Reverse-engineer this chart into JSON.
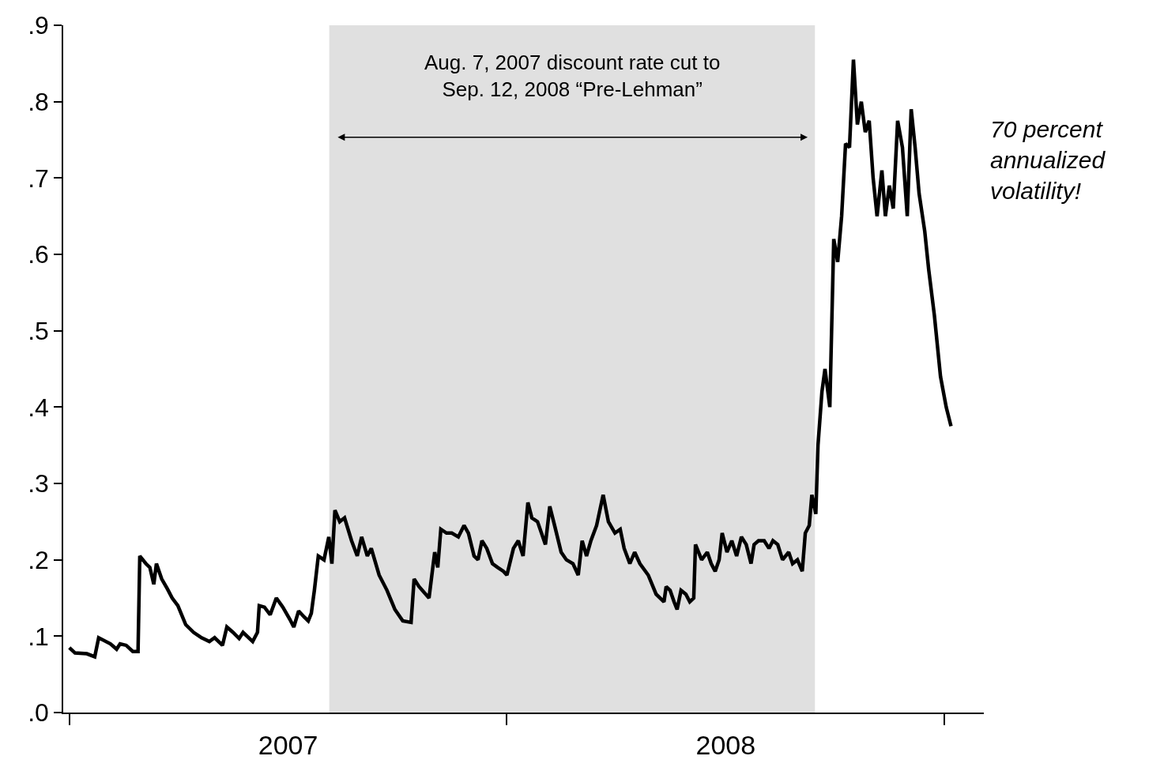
{
  "chart_data": {
    "type": "line",
    "x": [
      2007.0,
      2007.013,
      2007.04,
      2007.058,
      2007.067,
      2007.094,
      2007.108,
      2007.116,
      2007.13,
      2007.145,
      2007.157,
      2007.161,
      2007.175,
      2007.184,
      2007.193,
      2007.199,
      2007.211,
      2007.224,
      2007.235,
      2007.248,
      2007.266,
      2007.284,
      2007.302,
      2007.32,
      2007.332,
      2007.35,
      2007.36,
      2007.374,
      2007.388,
      2007.397,
      2007.419,
      2007.43,
      2007.434,
      2007.446,
      2007.459,
      2007.473,
      2007.488,
      2007.504,
      2007.513,
      2007.524,
      2007.537,
      2007.546,
      2007.553,
      2007.56,
      2007.569,
      2007.582,
      2007.593,
      2007.6,
      2007.607,
      2007.618,
      2007.629,
      2007.645,
      2007.658,
      2007.668,
      2007.681,
      2007.69,
      2007.708,
      2007.726,
      2007.744,
      2007.762,
      2007.781,
      2007.788,
      2007.799,
      2007.822,
      2007.835,
      2007.842,
      2007.849,
      2007.862,
      2007.874,
      2007.889,
      2007.902,
      2007.912,
      2007.925,
      2007.934,
      2007.943,
      2007.954,
      2007.967,
      2007.979,
      2007.992,
      2008.0,
      2008.015,
      2008.026,
      2008.037,
      2008.048,
      2008.057,
      2008.07,
      2008.088,
      2008.098,
      2008.109,
      2008.124,
      2008.136,
      2008.151,
      2008.163,
      2008.172,
      2008.182,
      2008.192,
      2008.205,
      2008.22,
      2008.232,
      2008.247,
      2008.259,
      2008.268,
      2008.281,
      2008.292,
      2008.304,
      2008.323,
      2008.341,
      2008.359,
      2008.364,
      2008.373,
      2008.382,
      2008.389,
      2008.398,
      2008.409,
      2008.418,
      2008.427,
      2008.431,
      2008.445,
      2008.458,
      2008.467,
      2008.476,
      2008.485,
      2008.492,
      2008.503,
      2008.514,
      2008.525,
      2008.536,
      2008.547,
      2008.558,
      2008.565,
      2008.575,
      2008.588,
      2008.599,
      2008.608,
      2008.619,
      2008.63,
      2008.644,
      2008.653,
      2008.664,
      2008.675,
      2008.682,
      2008.691,
      2008.697,
      2008.706,
      2008.711,
      2008.72,
      2008.727,
      2008.738,
      2008.747,
      2008.756,
      2008.765,
      2008.774,
      2008.783,
      2008.792,
      2008.801,
      2008.81,
      2008.819,
      2008.828,
      2008.837,
      2008.846,
      2008.857,
      2008.865,
      2008.874,
      2008.883,
      2008.893,
      2008.904,
      2008.915,
      2008.924,
      2008.933,
      2008.942,
      2008.955,
      2008.964,
      2008.977,
      2008.991,
      2009.004,
      2009.015
    ],
    "series": [
      {
        "color": "#000000",
        "values": [
          0.085,
          0.078,
          0.077,
          0.073,
          0.098,
          0.09,
          0.083,
          0.09,
          0.088,
          0.08,
          0.08,
          0.205,
          0.195,
          0.19,
          0.168,
          0.195,
          0.175,
          0.162,
          0.15,
          0.14,
          0.115,
          0.105,
          0.098,
          0.093,
          0.098,
          0.088,
          0.112,
          0.105,
          0.097,
          0.105,
          0.093,
          0.105,
          0.14,
          0.138,
          0.128,
          0.15,
          0.138,
          0.122,
          0.112,
          0.133,
          0.125,
          0.12,
          0.13,
          0.16,
          0.205,
          0.2,
          0.23,
          0.195,
          0.265,
          0.25,
          0.255,
          0.225,
          0.205,
          0.23,
          0.205,
          0.215,
          0.18,
          0.16,
          0.135,
          0.12,
          0.118,
          0.175,
          0.165,
          0.15,
          0.21,
          0.19,
          0.24,
          0.235,
          0.235,
          0.23,
          0.245,
          0.235,
          0.205,
          0.2,
          0.225,
          0.215,
          0.195,
          0.19,
          0.185,
          0.18,
          0.215,
          0.225,
          0.205,
          0.275,
          0.255,
          0.25,
          0.22,
          0.27,
          0.245,
          0.21,
          0.2,
          0.195,
          0.18,
          0.225,
          0.205,
          0.225,
          0.245,
          0.285,
          0.25,
          0.235,
          0.24,
          0.215,
          0.195,
          0.21,
          0.195,
          0.18,
          0.155,
          0.145,
          0.165,
          0.16,
          0.145,
          0.135,
          0.16,
          0.155,
          0.145,
          0.15,
          0.22,
          0.2,
          0.21,
          0.195,
          0.185,
          0.2,
          0.235,
          0.21,
          0.225,
          0.205,
          0.23,
          0.22,
          0.195,
          0.22,
          0.225,
          0.225,
          0.215,
          0.225,
          0.22,
          0.2,
          0.21,
          0.195,
          0.2,
          0.185,
          0.235,
          0.245,
          0.285,
          0.26,
          0.35,
          0.42,
          0.45,
          0.4,
          0.62,
          0.59,
          0.65,
          0.745,
          0.74,
          0.855,
          0.77,
          0.8,
          0.76,
          0.775,
          0.7,
          0.65,
          0.71,
          0.65,
          0.69,
          0.66,
          0.775,
          0.74,
          0.65,
          0.79,
          0.74,
          0.68,
          0.63,
          0.58,
          0.52,
          0.44,
          0.4,
          0.375
        ]
      }
    ],
    "xlim": [
      2006.986,
      2009.09
    ],
    "xticks": [
      {
        "value": 2007,
        "label": null
      },
      {
        "value": 2007.5,
        "label": "2007"
      },
      {
        "value": 2008,
        "label": null
      },
      {
        "value": 2008.5,
        "label": "2008"
      },
      {
        "value": 2009,
        "label": null
      }
    ],
    "ylim": [
      0,
      0.9
    ],
    "yticks": [
      {
        "value": 0,
        "label": ".0"
      },
      {
        "value": 0.1,
        "label": ".1"
      },
      {
        "value": 0.2,
        "label": ".2"
      },
      {
        "value": 0.3,
        "label": ".3"
      },
      {
        "value": 0.4,
        "label": ".4"
      },
      {
        "value": 0.5,
        "label": ".5"
      },
      {
        "value": 0.6,
        "label": ".6"
      },
      {
        "value": 0.7,
        "label": ".7"
      },
      {
        "value": 0.8,
        "label": ".8"
      },
      {
        "value": 0.9,
        "label": ".9"
      }
    ],
    "bands": [
      {
        "axis": "x",
        "from": 2007.594,
        "to": 2008.704,
        "label": "Aug. 7, 2007 discount rate cut to\nSep. 12, 2008 “Pre-Lehman”",
        "color": "#e0e0e0"
      }
    ],
    "annotations": [
      "70 percent\nannualized\nvolatility!"
    ],
    "grid": false,
    "marker": "none",
    "line_style": "solid"
  }
}
